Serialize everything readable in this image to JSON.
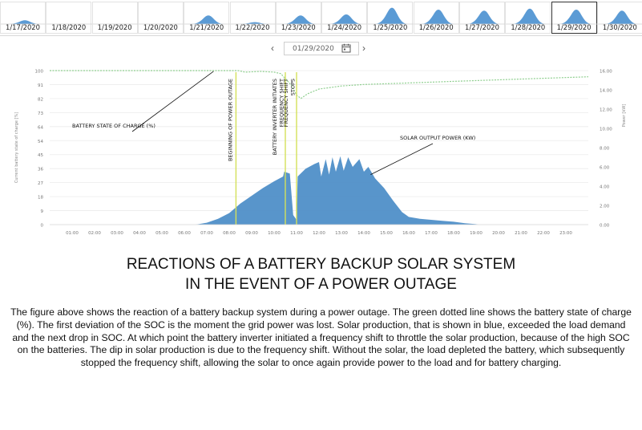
{
  "date_strip": {
    "tabs": [
      {
        "label": "1/17/2020",
        "peak": 0.2
      },
      {
        "label": "1/18/2020",
        "peak": 0.0
      },
      {
        "label": "1/19/2020",
        "peak": 0.0
      },
      {
        "label": "1/20/2020",
        "peak": 0.0
      },
      {
        "label": "1/21/2020",
        "peak": 0.45
      },
      {
        "label": "1/22/2020",
        "peak": 0.1
      },
      {
        "label": "1/23/2020",
        "peak": 0.45
      },
      {
        "label": "1/24/2020",
        "peak": 0.5
      },
      {
        "label": "1/25/2020",
        "peak": 0.85
      },
      {
        "label": "1/26/2020",
        "peak": 0.75
      },
      {
        "label": "1/27/2020",
        "peak": 0.7
      },
      {
        "label": "1/28/2020",
        "peak": 0.8
      },
      {
        "label": "1/29/2020",
        "peak": 0.75
      },
      {
        "label": "1/30/2020",
        "peak": 0.7
      }
    ],
    "selected_label": "1/29/2020"
  },
  "date_picker": {
    "value": "01/29/2020",
    "prev_symbol": "‹",
    "next_symbol": "›"
  },
  "chart_data": {
    "type": "area",
    "x_ticks": [
      "01:00",
      "02:00",
      "03:00",
      "04:00",
      "05:00",
      "06:00",
      "07:00",
      "08:00",
      "09:00",
      "10:00",
      "11:00",
      "12:00",
      "13:00",
      "14:00",
      "15:00",
      "16:00",
      "17:00",
      "18:00",
      "19:00",
      "20:00",
      "21:00",
      "22:00",
      "23:00"
    ],
    "y_left": {
      "label": "Current battery state of charge [%]",
      "ticks": [
        "0",
        "9",
        "18",
        "27",
        "36",
        "45",
        "54",
        "64",
        "73",
        "82",
        "91",
        "100"
      ],
      "range": [
        0,
        100
      ]
    },
    "y_right": {
      "label": "Power [kW]",
      "ticks": [
        "0.00",
        "2.00",
        "4.00",
        "6.00",
        "8.00",
        "10.00",
        "12.00",
        "14.00",
        "16.00"
      ],
      "range": [
        0,
        16
      ]
    },
    "x_range": [
      0,
      24
    ],
    "series": [
      {
        "type": "area",
        "axis": "right",
        "color": "#4f8fc8",
        "points": [
          [
            0,
            0
          ],
          [
            6.5,
            0
          ],
          [
            7.0,
            0.2
          ],
          [
            7.5,
            0.6
          ],
          [
            8.0,
            1.2
          ],
          [
            8.5,
            2.2
          ],
          [
            9.0,
            3.0
          ],
          [
            9.5,
            3.8
          ],
          [
            10.0,
            4.5
          ],
          [
            10.4,
            5.0
          ],
          [
            10.45,
            5.5
          ],
          [
            10.7,
            5.3
          ],
          [
            10.85,
            1.0
          ],
          [
            11.0,
            0.5
          ],
          [
            11.05,
            5.0
          ],
          [
            11.4,
            5.8
          ],
          [
            11.8,
            6.3
          ],
          [
            12.0,
            6.5
          ],
          [
            12.1,
            5.0
          ],
          [
            12.3,
            6.8
          ],
          [
            12.45,
            5.2
          ],
          [
            12.6,
            7.0
          ],
          [
            12.75,
            5.5
          ],
          [
            12.95,
            7.1
          ],
          [
            13.1,
            5.6
          ],
          [
            13.3,
            7.0
          ],
          [
            13.5,
            6.0
          ],
          [
            13.8,
            6.8
          ],
          [
            14.0,
            5.5
          ],
          [
            14.2,
            6.0
          ],
          [
            14.5,
            4.8
          ],
          [
            14.9,
            3.8
          ],
          [
            15.3,
            2.5
          ],
          [
            15.7,
            1.3
          ],
          [
            16.0,
            0.8
          ],
          [
            16.5,
            0.6
          ],
          [
            17.0,
            0.5
          ],
          [
            17.5,
            0.4
          ],
          [
            18.0,
            0.3
          ],
          [
            18.5,
            0.15
          ],
          [
            19.0,
            0.05
          ],
          [
            19.1,
            0
          ],
          [
            24,
            0
          ]
        ]
      },
      {
        "type": "line",
        "axis": "left",
        "color": "#8fcf8f",
        "dashed": true,
        "points": [
          [
            0,
            100
          ],
          [
            8.4,
            100
          ],
          [
            8.7,
            99
          ],
          [
            9.4,
            99.5
          ],
          [
            10.0,
            99
          ],
          [
            10.3,
            98
          ],
          [
            10.8,
            90
          ],
          [
            11.0,
            84
          ],
          [
            11.2,
            82
          ],
          [
            11.5,
            85
          ],
          [
            12.0,
            88
          ],
          [
            13.0,
            90
          ],
          [
            14.0,
            91
          ],
          [
            16.0,
            92
          ],
          [
            18.0,
            93
          ],
          [
            20.0,
            94
          ],
          [
            22.0,
            95
          ],
          [
            24.0,
            96
          ]
        ]
      }
    ],
    "vertical_lines": [
      {
        "x": 8.3,
        "color": "#d4e05a",
        "label": "BEGINNING OF POWER OUTAGE"
      },
      {
        "x": 10.5,
        "color": "#d4e05a",
        "label": "BATTERY INVERTER INITIATES\nFREQUENCY SHIFT"
      },
      {
        "x": 11.0,
        "color": "#d4e05a",
        "label": "FREQUENCY SHIFT\nSTOPS"
      }
    ],
    "annotations": [
      {
        "text": "BATTERY STATE OF CHARGE (%)"
      },
      {
        "text": "SOLAR OUTPUT POWER (KW)"
      }
    ],
    "grid": true
  },
  "caption": {
    "title_line1": "REACTIONS OF A BATTERY BACKUP SOLAR SYSTEM",
    "title_line2": "IN THE EVENT OF A POWER OUTAGE",
    "body": "The figure above shows the reaction of a battery backup system during a power outage. The green dotted line shows the battery state of charge (%). The first deviation of the SOC is the moment the grid power was lost. Solar production, that is shown in blue, exceeded the load demand and the next drop in SOC. At which point the battery inverter initiated a frequency shift to throttle the solar production, because of the high SOC on the batteries. The dip in solar production is due to the frequency shift. Without the solar, the load depleted the battery, which subsequently stopped the frequency shift, allowing the solar to once again provide power to the load and for battery charging."
  }
}
